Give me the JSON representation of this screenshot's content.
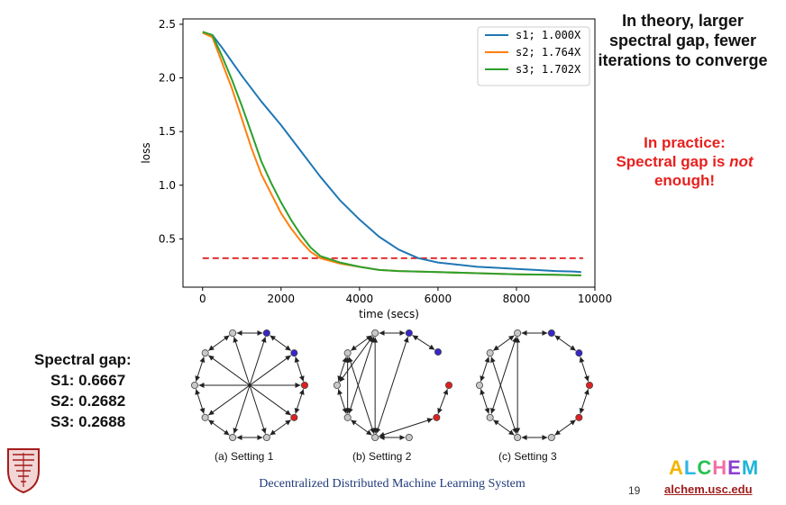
{
  "slide": {
    "theory_text": "In theory, larger spectral gap, fewer iterations to converge",
    "practice_line1": "In practice:",
    "practice_line2_a": "Spectral gap is ",
    "practice_line2_em": "not",
    "practice_line3": "enough!",
    "gap_title": "Spectral gap:",
    "gap_rows": [
      "S1: 0.6667",
      "S2: 0.2682",
      "S3: 0.2688"
    ],
    "footer": "Decentralized Distributed Machine Learning System",
    "page_number": "19",
    "brand_letters": [
      "A",
      "L",
      "C",
      "H",
      "E",
      "M"
    ],
    "brand_colors": [
      "#f5b400",
      "#2fb5e8",
      "#24c24f",
      "#f46da6",
      "#8c3fd1",
      "#1fb6d6"
    ],
    "url": "alchem.usc.edu"
  },
  "graphs": [
    {
      "caption": "(a) Setting 1",
      "node_colors": [
        "#3826c9",
        "#3826c9",
        "#e02020",
        "#e02020",
        "#c8c8c8",
        "#c8c8c8",
        "#c8c8c8",
        "#c8c8c8",
        "#c8c8c8",
        "#c8c8c8"
      ],
      "edges": [
        [
          0,
          5
        ],
        [
          1,
          6
        ],
        [
          2,
          7
        ],
        [
          3,
          8
        ],
        [
          4,
          9
        ],
        [
          0,
          1
        ],
        [
          1,
          2
        ],
        [
          2,
          3
        ],
        [
          3,
          4
        ],
        [
          4,
          5
        ],
        [
          5,
          6
        ],
        [
          6,
          7
        ],
        [
          7,
          8
        ],
        [
          8,
          9
        ],
        [
          9,
          0
        ]
      ]
    },
    {
      "caption": "(b) Setting 2",
      "node_colors": [
        "#3826c9",
        "#3826c9",
        "#e02020",
        "#e02020",
        "#c8c8c8",
        "#c8c8c8",
        "#c8c8c8",
        "#c8c8c8",
        "#c8c8c8",
        "#c8c8c8"
      ],
      "edges": [
        [
          0,
          1
        ],
        [
          2,
          3
        ],
        [
          3,
          5
        ],
        [
          4,
          5
        ],
        [
          5,
          6
        ],
        [
          6,
          7
        ],
        [
          7,
          8
        ],
        [
          8,
          9
        ],
        [
          0,
          5
        ],
        [
          0,
          9
        ],
        [
          9,
          5
        ],
        [
          8,
          5
        ],
        [
          9,
          7
        ],
        [
          8,
          6
        ],
        [
          9,
          6
        ]
      ]
    },
    {
      "caption": "(c) Setting 3",
      "node_colors": [
        "#3826c9",
        "#3826c9",
        "#e02020",
        "#e02020",
        "#c8c8c8",
        "#c8c8c8",
        "#c8c8c8",
        "#c8c8c8",
        "#c8c8c8",
        "#c8c8c8"
      ],
      "edges": [
        [
          0,
          1
        ],
        [
          1,
          2
        ],
        [
          2,
          3
        ],
        [
          3,
          4
        ],
        [
          4,
          5
        ],
        [
          5,
          6
        ],
        [
          6,
          7
        ],
        [
          7,
          8
        ],
        [
          8,
          9
        ],
        [
          9,
          0
        ],
        [
          9,
          5
        ],
        [
          9,
          6
        ],
        [
          8,
          5
        ]
      ]
    }
  ],
  "chart_data": {
    "type": "line",
    "xlabel": "time (secs)",
    "ylabel": "loss",
    "xlim": [
      -500,
      10000
    ],
    "ylim": [
      0.05,
      2.55
    ],
    "xticks": [
      0,
      2000,
      4000,
      6000,
      8000,
      10000
    ],
    "yticks": [
      0.5,
      1.0,
      1.5,
      2.0,
      2.5
    ],
    "xtick_labels": [
      "0",
      "2000",
      "4000",
      "6000",
      "8000",
      "10000"
    ],
    "ytick_labels": [
      "0.5",
      "1.0",
      "1.5",
      "2.0",
      "2.5"
    ],
    "legend_position": "top-right",
    "threshold": {
      "y": 0.32,
      "color": "#e02020",
      "style": "dashed"
    },
    "series": [
      {
        "name": "s1; 1.000X",
        "color": "#1f77b4",
        "x": [
          0,
          250,
          500,
          1000,
          1500,
          2000,
          2500,
          3000,
          3500,
          4000,
          4500,
          5000,
          5500,
          6000,
          6500,
          7000,
          7500,
          8000,
          8500,
          9000,
          9500,
          9650
        ],
        "y": [
          2.42,
          2.4,
          2.28,
          2.02,
          1.78,
          1.56,
          1.32,
          1.08,
          0.86,
          0.68,
          0.52,
          0.4,
          0.32,
          0.28,
          0.26,
          0.24,
          0.23,
          0.22,
          0.21,
          0.2,
          0.195,
          0.19
        ]
      },
      {
        "name": "s2; 1.764X",
        "color": "#ff7f0e",
        "x": [
          0,
          250,
          500,
          750,
          1000,
          1250,
          1500,
          1750,
          2000,
          2250,
          2500,
          2750,
          3000,
          3500,
          4000,
          4500,
          5000,
          6000,
          7000,
          8000,
          9000,
          9650
        ],
        "y": [
          2.42,
          2.38,
          2.14,
          1.9,
          1.62,
          1.34,
          1.1,
          0.92,
          0.74,
          0.6,
          0.48,
          0.38,
          0.32,
          0.27,
          0.24,
          0.21,
          0.2,
          0.19,
          0.18,
          0.17,
          0.165,
          0.16
        ]
      },
      {
        "name": "s3; 1.702X",
        "color": "#2ca02c",
        "x": [
          0,
          250,
          500,
          750,
          1000,
          1250,
          1500,
          1750,
          2000,
          2250,
          2500,
          2750,
          3000,
          3500,
          4000,
          4500,
          5000,
          6000,
          7000,
          8000,
          9000,
          9650
        ],
        "y": [
          2.43,
          2.4,
          2.2,
          1.98,
          1.74,
          1.48,
          1.22,
          1.02,
          0.84,
          0.68,
          0.54,
          0.42,
          0.34,
          0.28,
          0.24,
          0.21,
          0.2,
          0.19,
          0.18,
          0.17,
          0.165,
          0.16
        ]
      }
    ]
  }
}
